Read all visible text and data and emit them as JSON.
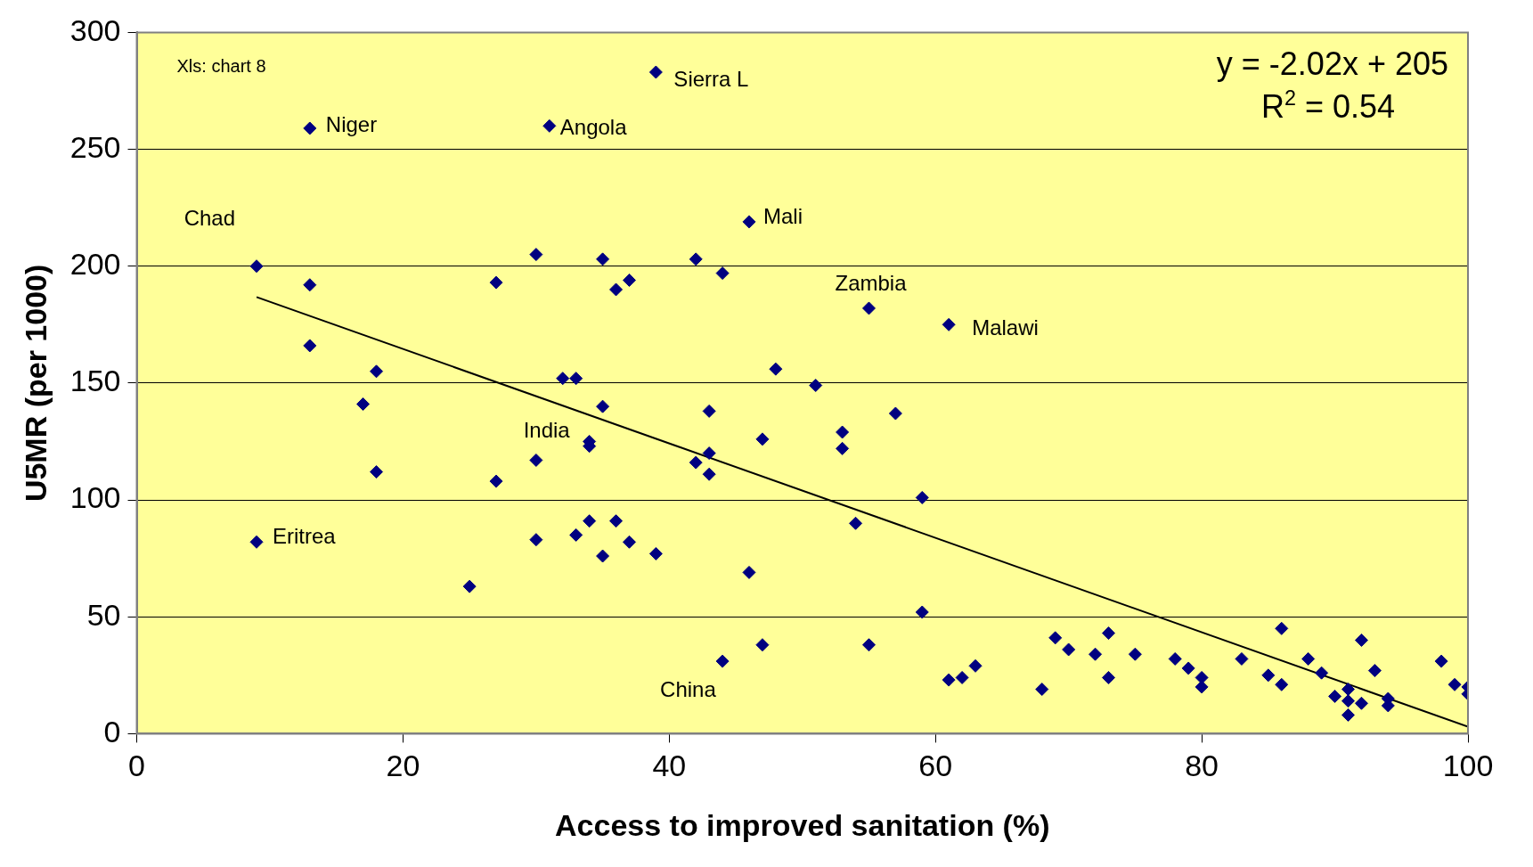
{
  "chart_data": {
    "type": "scatter",
    "xlabel": "Access to improved sanitation (%)",
    "ylabel": "U5MR (per 1000)",
    "xlim": [
      0,
      100
    ],
    "xticks": [
      0,
      20,
      40,
      60,
      80,
      100
    ],
    "ylim": [
      0,
      300
    ],
    "yticks": [
      0,
      50,
      100,
      150,
      200,
      250,
      300
    ],
    "grid": "y",
    "legend": false,
    "series": [
      {
        "type": "scatter",
        "color": "#000080",
        "marker": "diamond",
        "x": [
          9,
          13,
          13,
          13,
          17,
          18,
          18,
          9,
          25,
          27,
          27,
          30,
          30,
          30,
          31,
          32,
          33,
          33,
          34,
          34,
          34,
          35,
          35,
          35,
          36,
          36,
          37,
          37,
          39,
          39,
          42,
          42,
          43,
          43,
          43,
          44,
          44,
          46,
          46,
          47,
          47,
          48,
          51,
          53,
          53,
          54,
          55,
          55,
          57,
          59,
          59,
          61,
          61,
          62,
          63,
          68,
          69,
          70,
          72,
          73,
          73,
          75,
          78,
          79,
          80,
          80,
          83,
          85,
          86,
          86,
          88,
          89,
          90,
          91,
          91,
          91,
          92,
          92,
          93,
          94,
          94,
          98,
          99,
          100,
          100
        ],
        "values": [
          200,
          259,
          192,
          166,
          141,
          155,
          112,
          82,
          63,
          193,
          108,
          205,
          117,
          83,
          260,
          152,
          152,
          85,
          125,
          123,
          91,
          203,
          140,
          76,
          190,
          91,
          194,
          82,
          283,
          77,
          203,
          116,
          138,
          120,
          111,
          197,
          31,
          219,
          69,
          126,
          38,
          156,
          149,
          129,
          122,
          90,
          182,
          38,
          137,
          101,
          52,
          175,
          23,
          24,
          29,
          19,
          41,
          36,
          34,
          43,
          24,
          34,
          32,
          28,
          24,
          20,
          32,
          25,
          45,
          21,
          32,
          26,
          16,
          19,
          14,
          8,
          40,
          13,
          27,
          15,
          12,
          31,
          21,
          20,
          17
        ]
      },
      {
        "type": "line",
        "color": "#000000",
        "marker": "none",
        "line_style": "solid",
        "x": [
          9,
          100
        ],
        "values": [
          186.8,
          3
        ]
      }
    ],
    "annotations": [
      "Xls: chart 8",
      "y = -2.02x + 205",
      "R$^{2}$ = 0.54",
      {
        "text": "Niger",
        "x": 13,
        "y": 259
      },
      {
        "text": "Angola",
        "x": 31,
        "y": 260
      },
      {
        "text": "Sierra L",
        "x": 39,
        "y": 283
      },
      {
        "text": "Chad",
        "x": 9,
        "y": 200
      },
      {
        "text": "Mali",
        "x": 46,
        "y": 219
      },
      {
        "text": "Zambia",
        "x": 55,
        "y": 182
      },
      {
        "text": "Malawi",
        "x": 61,
        "y": 175
      },
      {
        "text": "India",
        "x": 34,
        "y": 125
      },
      {
        "text": "Eritrea",
        "x": 9,
        "y": 82
      },
      {
        "text": "China",
        "x": 44,
        "y": 31
      }
    ]
  }
}
